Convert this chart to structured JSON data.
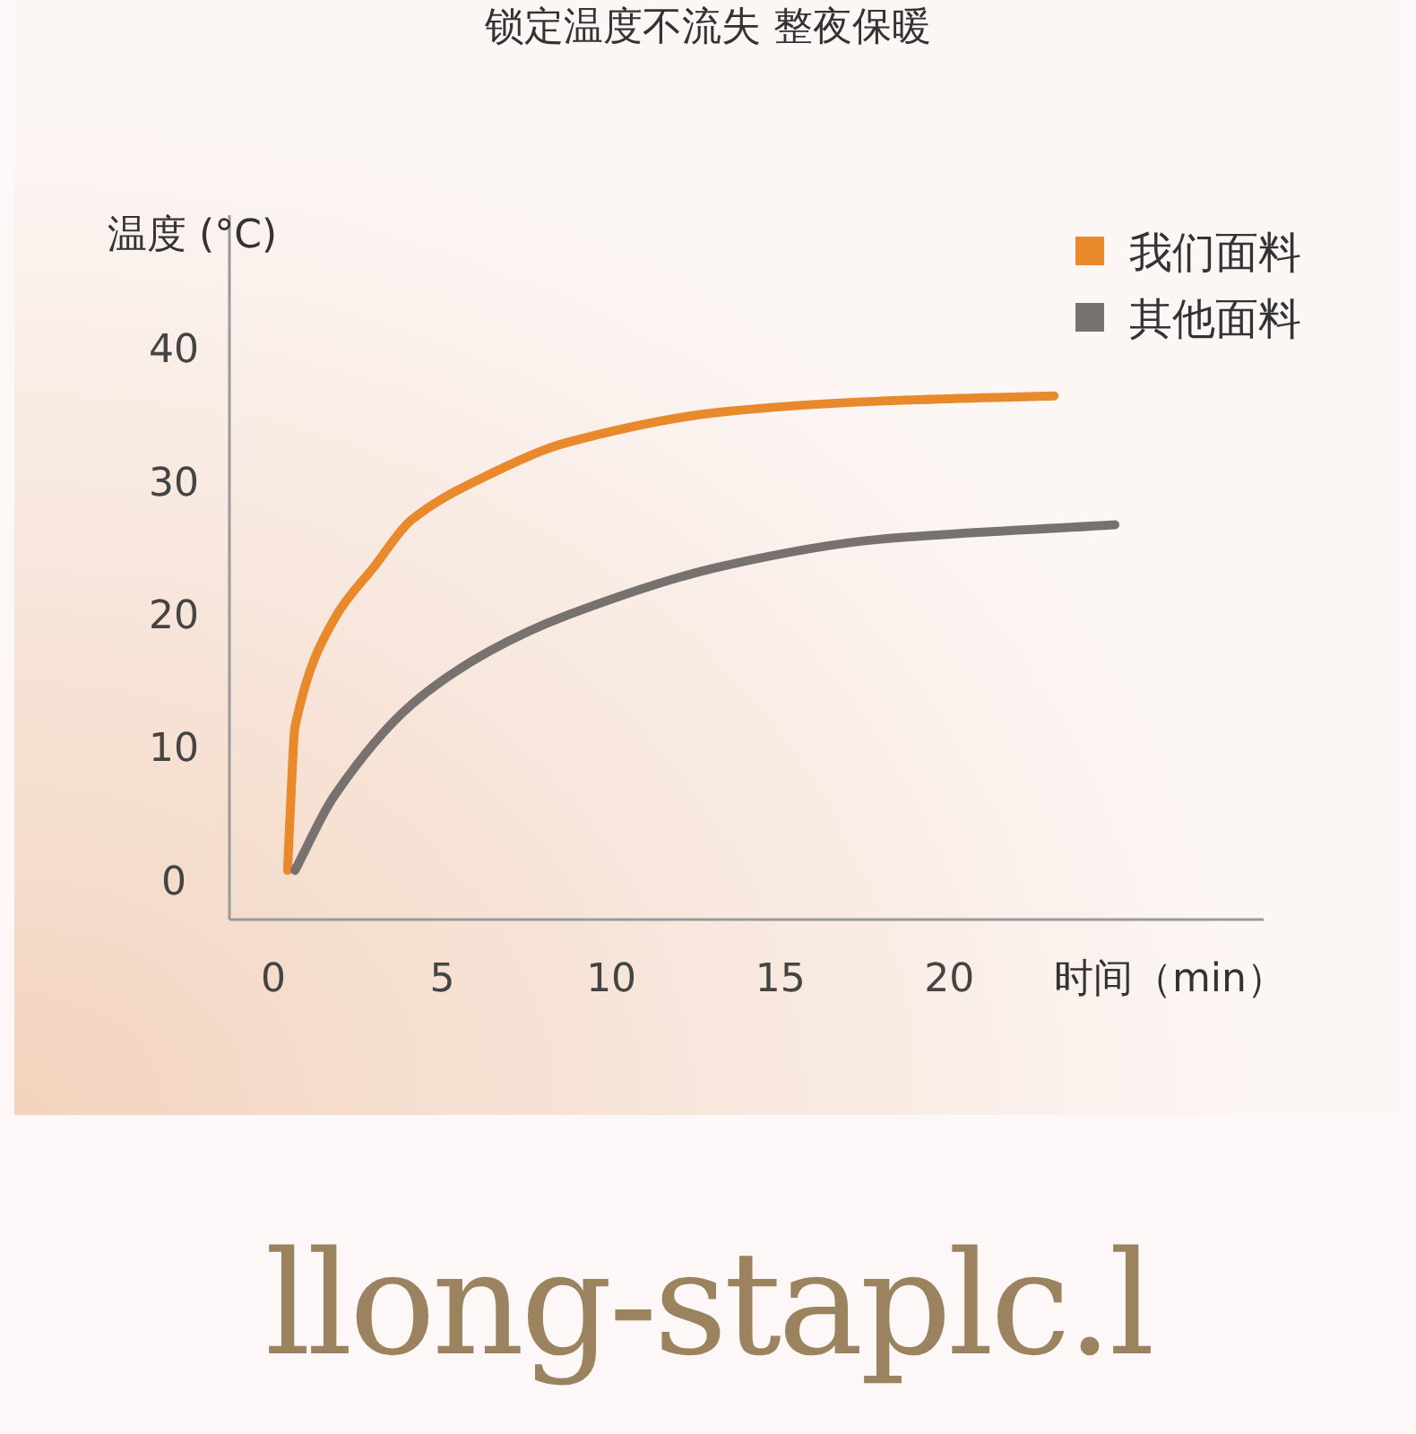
{
  "chart_data": {
    "type": "line",
    "title": "锁定温度不流失 整夜保暖",
    "ylabel": "温度 (°C)",
    "xlabel": "时间（min）",
    "xlim": [
      -1.3,
      29.3
    ],
    "xticks": [
      0,
      5,
      10,
      15,
      20
    ],
    "ylim": [
      -3,
      50
    ],
    "yticks": [
      0,
      10,
      20,
      30,
      40
    ],
    "grid": false,
    "legend": "top right",
    "marker": "none",
    "line_style": "solid",
    "series": [
      {
        "name": "我们面料",
        "color": "#e8892b",
        "x": [
          0.42,
          0.53,
          0.64,
          1.8,
          3.0,
          4.1,
          6.4,
          8.7,
          13.3,
          17.9,
          23.1
        ],
        "values": [
          0.7,
          6.8,
          11.5,
          19.6,
          23.6,
          27.1,
          30.5,
          32.9,
          35.2,
          36.0,
          36.4
        ]
      },
      {
        "name": "其他面料",
        "color": "#77726f",
        "x": [
          0.64,
          1.8,
          4.1,
          6.4,
          8.7,
          13.3,
          17.9,
          24.9
        ],
        "values": [
          0.7,
          6.3,
          13.2,
          17.2,
          19.9,
          23.6,
          25.6,
          26.7
        ]
      }
    ],
    "annotations": [
      "llong-staplc.l"
    ]
  }
}
